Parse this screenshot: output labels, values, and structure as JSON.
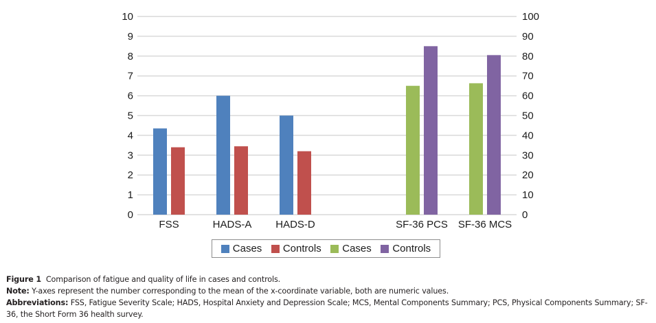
{
  "chart_data": {
    "type": "bar",
    "title": "",
    "categories": [
      "FSS",
      "HADS-A",
      "HADS-D",
      "",
      "SF-36 PCS",
      "SF-36 MCS"
    ],
    "left_axis": {
      "ylim": [
        0,
        10
      ],
      "ticks": [
        "0",
        "1",
        "2",
        "3",
        "4",
        "5",
        "6",
        "7",
        "8",
        "9",
        "10"
      ]
    },
    "right_axis": {
      "ylim": [
        0,
        100
      ],
      "ticks": [
        "0",
        "10",
        "20",
        "30",
        "40",
        "50",
        "60",
        "70",
        "80",
        "90",
        "100"
      ]
    },
    "series": [
      {
        "name": "Cases",
        "axis": "left",
        "color": "#4f81bd",
        "values": [
          4.35,
          6.0,
          5.0,
          null,
          null,
          null
        ]
      },
      {
        "name": "Controls",
        "axis": "left",
        "color": "#c0504d",
        "values": [
          3.4,
          3.45,
          3.2,
          null,
          null,
          null
        ]
      },
      {
        "name": "Cases",
        "axis": "right",
        "color": "#9bbb59",
        "values": [
          null,
          null,
          null,
          null,
          65,
          66.3
        ]
      },
      {
        "name": "Controls",
        "axis": "right",
        "color": "#8064a2",
        "values": [
          null,
          null,
          null,
          null,
          85,
          80.5
        ]
      }
    ],
    "grid": true,
    "legend_position": "bottom",
    "xlabel": "",
    "ylabel": ""
  },
  "legend": [
    {
      "label": "Cases",
      "color": "#4f81bd"
    },
    {
      "label": "Controls",
      "color": "#c0504d"
    },
    {
      "label": "Cases",
      "color": "#9bbb59"
    },
    {
      "label": "Controls",
      "color": "#8064a2"
    }
  ],
  "caption": {
    "figure_label": "Figure 1",
    "figure_text": "Comparison of fatigue and quality of life in cases and controls.",
    "note_label": "Note:",
    "note_text": "Y-axes represent the number corresponding to the mean of the x-coordinate variable, both are numeric values.",
    "abbr_label": "Abbreviations:",
    "abbr_text": "FSS, Fatigue Severity Scale; HADS, Hospital Anxiety and Depression Scale; MCS, Mental Components Summary; PCS, Physical Components Summary; SF-36, the Short Form 36 health survey."
  }
}
